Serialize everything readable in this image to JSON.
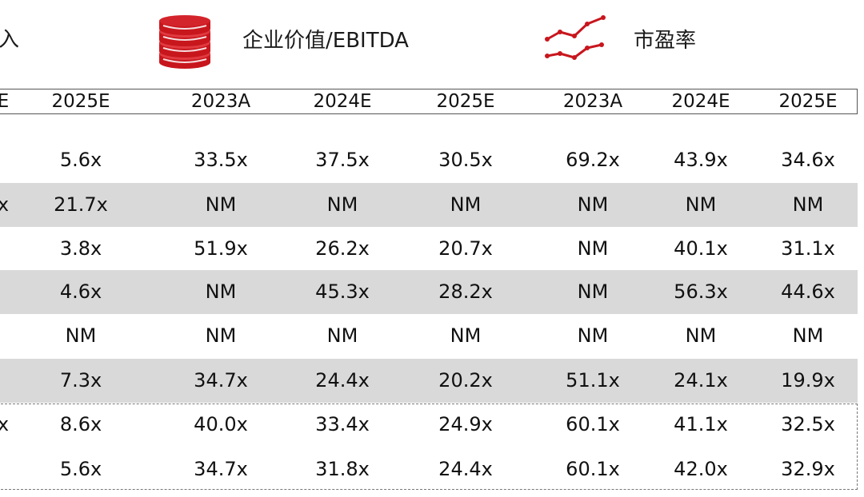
{
  "headers": {
    "group1_tail": "入",
    "group2": "企业价值/EBITDA",
    "group3": "市盈率",
    "coin_icon": "coin-stack-icon",
    "trend_icon": "line-trend-icon",
    "accent_color": "#c8161d"
  },
  "columns": [
    "E",
    "2025E",
    "2023A",
    "2024E",
    "2025E",
    "2023A",
    "2024E",
    "2025E"
  ],
  "chart_data": {
    "type": "table",
    "column_groups": [
      {
        "name": "入",
        "columns": [
          "E",
          "2025E"
        ]
      },
      {
        "name": "企业价值/EBITDA",
        "columns": [
          "2023A",
          "2024E",
          "2025E"
        ]
      },
      {
        "name": "市盈率",
        "columns": [
          "2023A",
          "2024E",
          "2025E"
        ]
      }
    ],
    "rows": [
      {
        "first": "",
        "cells": [
          "5.6x",
          "33.5x",
          "37.5x",
          "30.5x",
          "69.2x",
          "43.9x",
          "34.6x"
        ],
        "shaded": false
      },
      {
        "first": "x",
        "cells": [
          "21.7x",
          "NM",
          "NM",
          "NM",
          "NM",
          "NM",
          "NM"
        ],
        "shaded": true
      },
      {
        "first": "",
        "cells": [
          "3.8x",
          "51.9x",
          "26.2x",
          "20.7x",
          "NM",
          "40.1x",
          "31.1x"
        ],
        "shaded": false
      },
      {
        "first": "",
        "cells": [
          "4.6x",
          "NM",
          "45.3x",
          "28.2x",
          "NM",
          "56.3x",
          "44.6x"
        ],
        "shaded": true
      },
      {
        "first": "",
        "cells": [
          "NM",
          "NM",
          "NM",
          "NM",
          "NM",
          "NM",
          "NM"
        ],
        "shaded": false
      },
      {
        "first": "",
        "cells": [
          "7.3x",
          "34.7x",
          "24.4x",
          "20.2x",
          "51.1x",
          "24.1x",
          "19.9x"
        ],
        "shaded": true
      },
      {
        "first": "x",
        "cells": [
          "8.6x",
          "40.0x",
          "33.4x",
          "24.9x",
          "60.1x",
          "41.1x",
          "32.5x"
        ],
        "shaded": false,
        "summary": true
      },
      {
        "first": "",
        "cells": [
          "5.6x",
          "34.7x",
          "31.8x",
          "24.4x",
          "60.1x",
          "42.0x",
          "32.9x"
        ],
        "shaded": false,
        "summary": true
      }
    ]
  }
}
